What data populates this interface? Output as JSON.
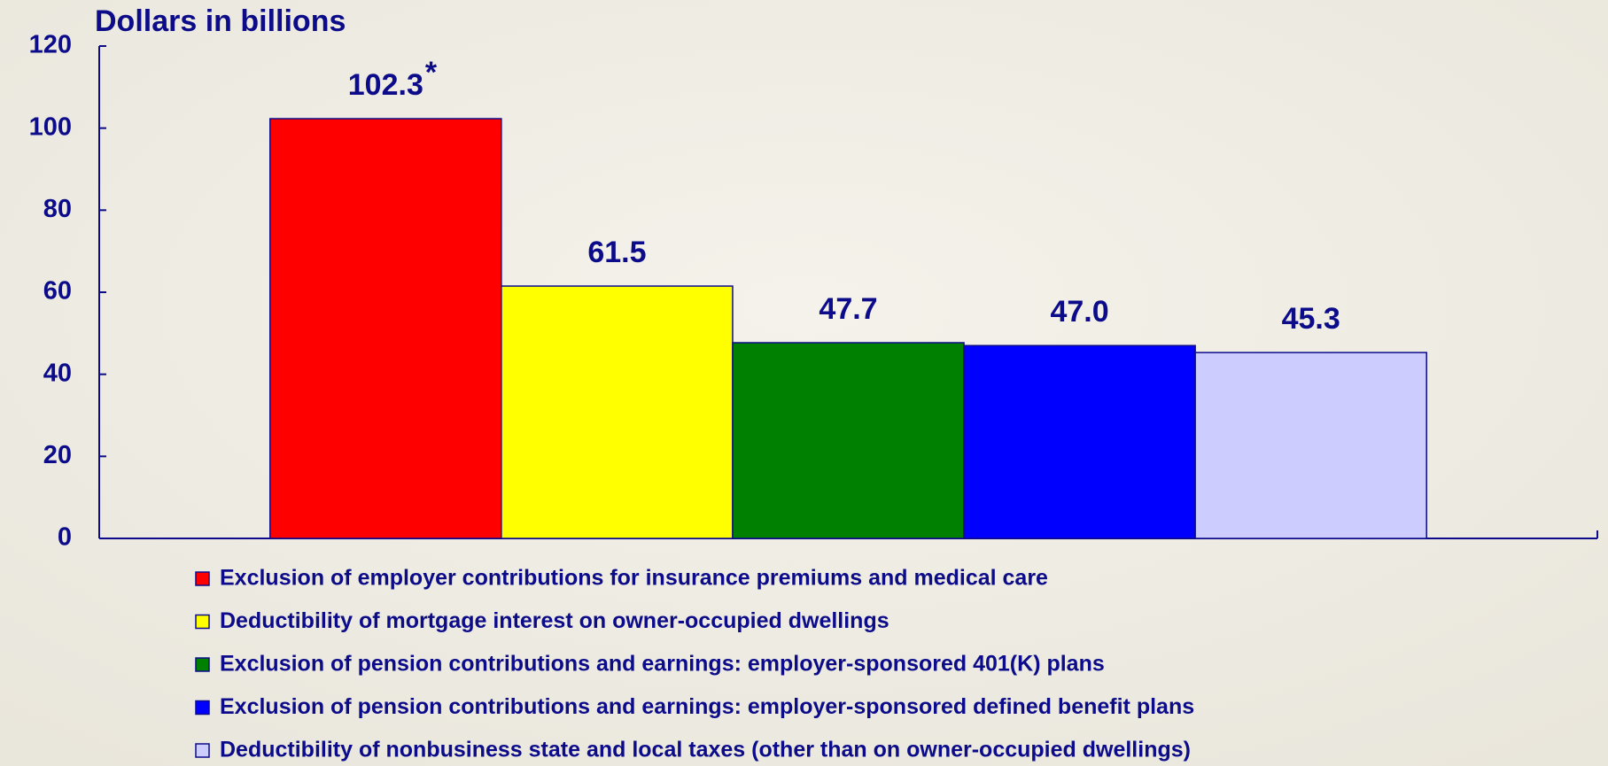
{
  "chart_data": {
    "type": "bar",
    "title": "Dollars in billions",
    "categories": [
      null
    ],
    "series": [
      {
        "name": "Exclusion of employer contributions for insurance premiums and medical care",
        "color": "#ff0000",
        "values": [
          102.3
        ],
        "value_labels": [
          "102.3"
        ]
      },
      {
        "name": "Deductibility of mortgage interest on owner-occupied dwellings",
        "color": "#ffff00",
        "values": [
          61.5
        ],
        "value_labels": [
          "61.5"
        ]
      },
      {
        "name": "Exclusion of pension contributions and earnings: employer-sponsored 401(K) plans",
        "color": "#008000",
        "values": [
          47.7
        ],
        "value_labels": [
          "47.7"
        ]
      },
      {
        "name": "Exclusion of pension contributions and earnings: employer-sponsored defined benefit plans",
        "color": "#0000ff",
        "values": [
          47.0
        ],
        "value_labels": [
          "47.0"
        ]
      },
      {
        "name": "Deductibility of nonbusiness state and local taxes (other than on owner-occupied dwellings)",
        "color": "#ccccff",
        "values": [
          45.3
        ],
        "value_labels": [
          "45.3"
        ]
      }
    ],
    "annotation": "*",
    "ylim": [
      0,
      120
    ],
    "yticks": [
      0,
      20,
      40,
      60,
      80,
      100,
      120
    ],
    "grid": false,
    "legend": "bottom"
  }
}
